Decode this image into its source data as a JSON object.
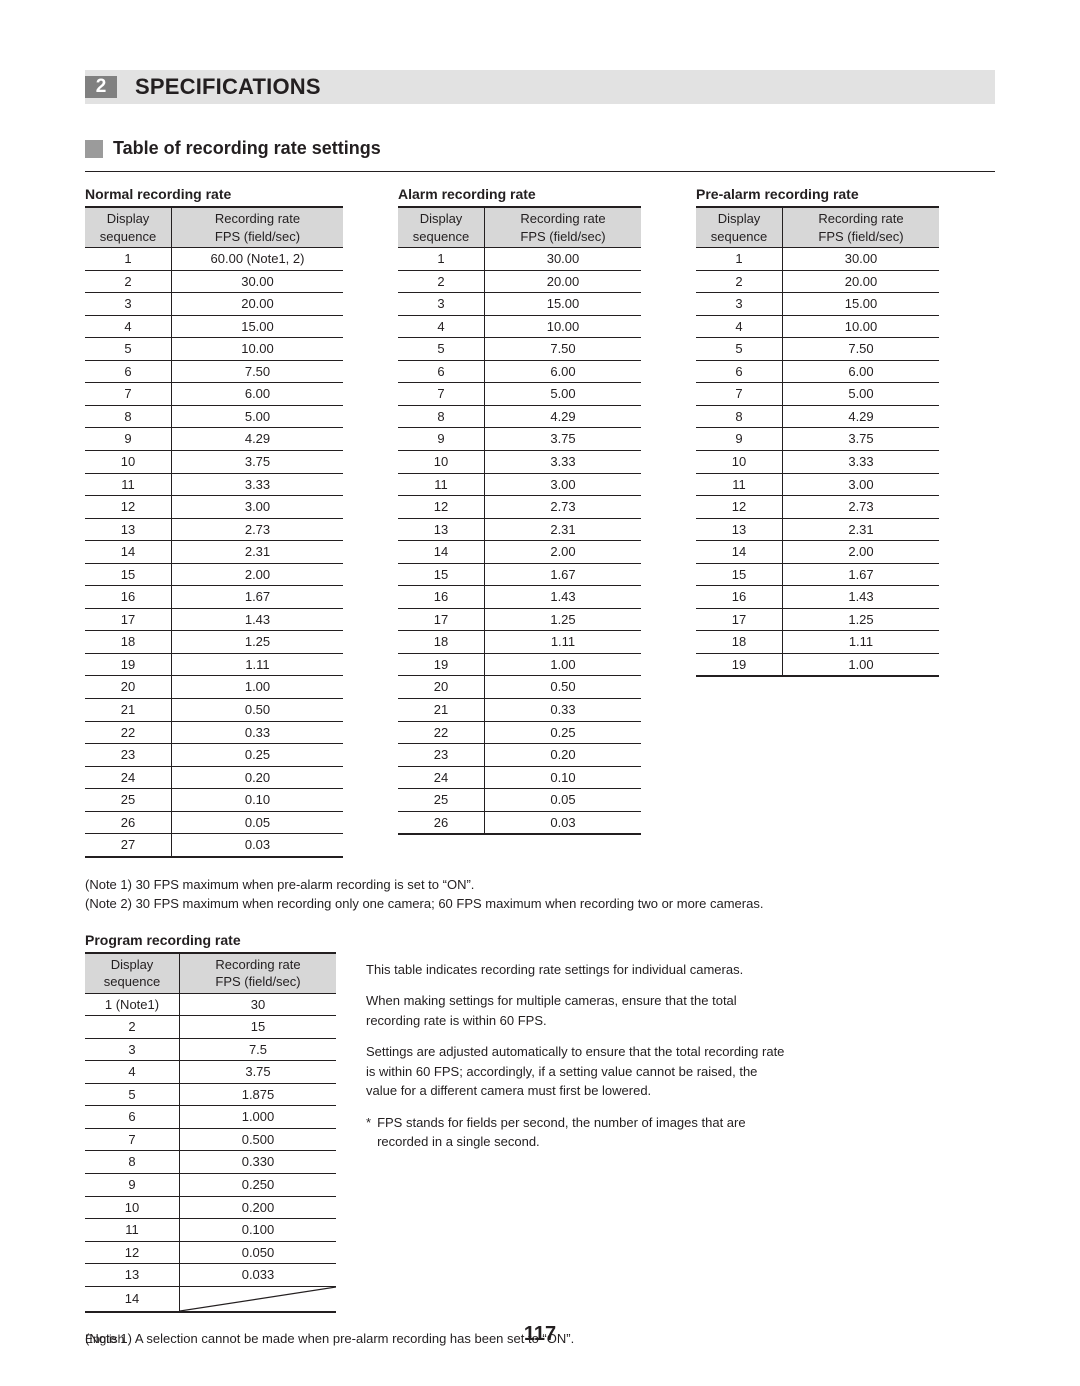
{
  "chapter": {
    "number": "2",
    "title": "SPECIFICATIONS"
  },
  "section": {
    "title": "Table of recording rate settings"
  },
  "table_normal": {
    "title": "Normal recording rate",
    "head_seq_l1": "Display",
    "head_seq_l2": "sequence",
    "head_val_l1": "Recording rate",
    "head_val_l2": "FPS (field/sec)",
    "rows": [
      {
        "seq": "1",
        "val": "60.00 (Note1, 2)"
      },
      {
        "seq": "2",
        "val": "30.00"
      },
      {
        "seq": "3",
        "val": "20.00"
      },
      {
        "seq": "4",
        "val": "15.00"
      },
      {
        "seq": "5",
        "val": "10.00"
      },
      {
        "seq": "6",
        "val": "7.50"
      },
      {
        "seq": "7",
        "val": "6.00"
      },
      {
        "seq": "8",
        "val": "5.00"
      },
      {
        "seq": "9",
        "val": "4.29"
      },
      {
        "seq": "10",
        "val": "3.75"
      },
      {
        "seq": "11",
        "val": "3.33"
      },
      {
        "seq": "12",
        "val": "3.00"
      },
      {
        "seq": "13",
        "val": "2.73"
      },
      {
        "seq": "14",
        "val": "2.31"
      },
      {
        "seq": "15",
        "val": "2.00"
      },
      {
        "seq": "16",
        "val": "1.67"
      },
      {
        "seq": "17",
        "val": "1.43"
      },
      {
        "seq": "18",
        "val": "1.25"
      },
      {
        "seq": "19",
        "val": "1.11"
      },
      {
        "seq": "20",
        "val": "1.00"
      },
      {
        "seq": "21",
        "val": "0.50"
      },
      {
        "seq": "22",
        "val": "0.33"
      },
      {
        "seq": "23",
        "val": "0.25"
      },
      {
        "seq": "24",
        "val": "0.20"
      },
      {
        "seq": "25",
        "val": "0.10"
      },
      {
        "seq": "26",
        "val": "0.05"
      },
      {
        "seq": "27",
        "val": "0.03"
      }
    ]
  },
  "table_alarm": {
    "title": "Alarm recording rate",
    "head_seq_l1": "Display",
    "head_seq_l2": "sequence",
    "head_val_l1": "Recording rate",
    "head_val_l2": "FPS (field/sec)",
    "rows": [
      {
        "seq": "1",
        "val": "30.00"
      },
      {
        "seq": "2",
        "val": "20.00"
      },
      {
        "seq": "3",
        "val": "15.00"
      },
      {
        "seq": "4",
        "val": "10.00"
      },
      {
        "seq": "5",
        "val": "7.50"
      },
      {
        "seq": "6",
        "val": "6.00"
      },
      {
        "seq": "7",
        "val": "5.00"
      },
      {
        "seq": "8",
        "val": "4.29"
      },
      {
        "seq": "9",
        "val": "3.75"
      },
      {
        "seq": "10",
        "val": "3.33"
      },
      {
        "seq": "11",
        "val": "3.00"
      },
      {
        "seq": "12",
        "val": "2.73"
      },
      {
        "seq": "13",
        "val": "2.31"
      },
      {
        "seq": "14",
        "val": "2.00"
      },
      {
        "seq": "15",
        "val": "1.67"
      },
      {
        "seq": "16",
        "val": "1.43"
      },
      {
        "seq": "17",
        "val": "1.25"
      },
      {
        "seq": "18",
        "val": "1.11"
      },
      {
        "seq": "19",
        "val": "1.00"
      },
      {
        "seq": "20",
        "val": "0.50"
      },
      {
        "seq": "21",
        "val": "0.33"
      },
      {
        "seq": "22",
        "val": "0.25"
      },
      {
        "seq": "23",
        "val": "0.20"
      },
      {
        "seq": "24",
        "val": "0.10"
      },
      {
        "seq": "25",
        "val": "0.05"
      },
      {
        "seq": "26",
        "val": "0.03"
      }
    ]
  },
  "table_prealarm": {
    "title": "Pre-alarm recording rate",
    "head_seq_l1": "Display",
    "head_seq_l2": "sequence",
    "head_val_l1": "Recording rate",
    "head_val_l2": "FPS (field/sec)",
    "rows": [
      {
        "seq": "1",
        "val": "30.00"
      },
      {
        "seq": "2",
        "val": "20.00"
      },
      {
        "seq": "3",
        "val": "15.00"
      },
      {
        "seq": "4",
        "val": "10.00"
      },
      {
        "seq": "5",
        "val": "7.50"
      },
      {
        "seq": "6",
        "val": "6.00"
      },
      {
        "seq": "7",
        "val": "5.00"
      },
      {
        "seq": "8",
        "val": "4.29"
      },
      {
        "seq": "9",
        "val": "3.75"
      },
      {
        "seq": "10",
        "val": "3.33"
      },
      {
        "seq": "11",
        "val": "3.00"
      },
      {
        "seq": "12",
        "val": "2.73"
      },
      {
        "seq": "13",
        "val": "2.31"
      },
      {
        "seq": "14",
        "val": "2.00"
      },
      {
        "seq": "15",
        "val": "1.67"
      },
      {
        "seq": "16",
        "val": "1.43"
      },
      {
        "seq": "17",
        "val": "1.25"
      },
      {
        "seq": "18",
        "val": "1.11"
      },
      {
        "seq": "19",
        "val": "1.00"
      }
    ]
  },
  "notes": {
    "n1": "(Note 1)  30 FPS maximum when pre-alarm recording is set to “ON”.",
    "n2": "(Note 2)  30 FPS maximum when recording only one camera; 60 FPS maximum when recording two or more cameras."
  },
  "table_program": {
    "title": "Program recording rate",
    "head_seq_l1": "Display",
    "head_seq_l2": "sequence",
    "head_val_l1": "Recording rate",
    "head_val_l2": "FPS (field/sec)",
    "rows": [
      {
        "seq": "1 (Note1)",
        "val": "30"
      },
      {
        "seq": "2",
        "val": "15"
      },
      {
        "seq": "3",
        "val": "7.5"
      },
      {
        "seq": "4",
        "val": "3.75"
      },
      {
        "seq": "5",
        "val": "1.875"
      },
      {
        "seq": "6",
        "val": "1.000"
      },
      {
        "seq": "7",
        "val": "0.500"
      },
      {
        "seq": "8",
        "val": "0.330"
      },
      {
        "seq": "9",
        "val": "0.250"
      },
      {
        "seq": "10",
        "val": "0.200"
      },
      {
        "seq": "11",
        "val": "0.100"
      },
      {
        "seq": "12",
        "val": "0.050"
      },
      {
        "seq": "13",
        "val": "0.033"
      }
    ],
    "last_seq": "14"
  },
  "program_text": {
    "p1": "This table indicates recording rate settings for individual cameras.",
    "p2": "When making settings for multiple cameras, ensure that the total recording rate is within 60 FPS.",
    "p3": "Settings are adjusted automatically to ensure that the total recording rate is within 60 FPS; accordingly, if a setting value cannot be raised, the value for a different camera must first be lowered.",
    "star": "*",
    "p4": "FPS stands for fields per second, the number of images that are recorded in a single second."
  },
  "bottom_note": "(Note 1)  A selection cannot be made when pre-alarm recording has been set to “ON”.",
  "footer": {
    "lang": "English",
    "page": "117"
  },
  "style": {
    "header_bg": "#d7d7d7",
    "rule_color": "#231f20",
    "chapter_bg": "#808080",
    "section_box": "#9b9b9b"
  }
}
